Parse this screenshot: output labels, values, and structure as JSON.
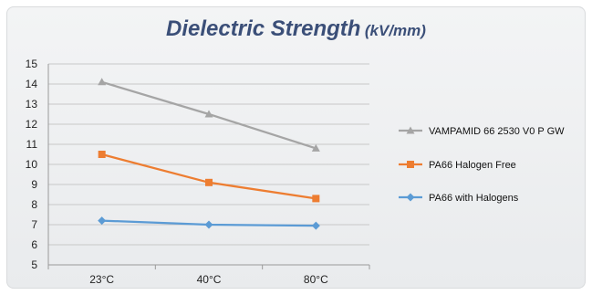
{
  "chart_data": {
    "type": "line",
    "title": "Dielectric Strength",
    "title_unit": "(kV/mm)",
    "categories": [
      "23°C",
      "40°C",
      "80°C"
    ],
    "ylim": [
      5,
      15
    ],
    "yticks": [
      5,
      6,
      7,
      8,
      9,
      10,
      11,
      12,
      13,
      14,
      15
    ],
    "grid": "horizontal",
    "legend_position": "right",
    "series": [
      {
        "name": "VAMPAMID 66 2530 V0 P GW",
        "values": [
          14.1,
          12.5,
          10.8
        ],
        "color": "#a5a5a5",
        "marker": "triangle"
      },
      {
        "name": "PA66 Halogen Free",
        "values": [
          10.5,
          9.1,
          8.3
        ],
        "color": "#ed7d31",
        "marker": "square"
      },
      {
        "name": "PA66 with Halogens",
        "values": [
          7.2,
          7.0,
          6.95
        ],
        "color": "#5b9bd5",
        "marker": "diamond"
      }
    ]
  }
}
